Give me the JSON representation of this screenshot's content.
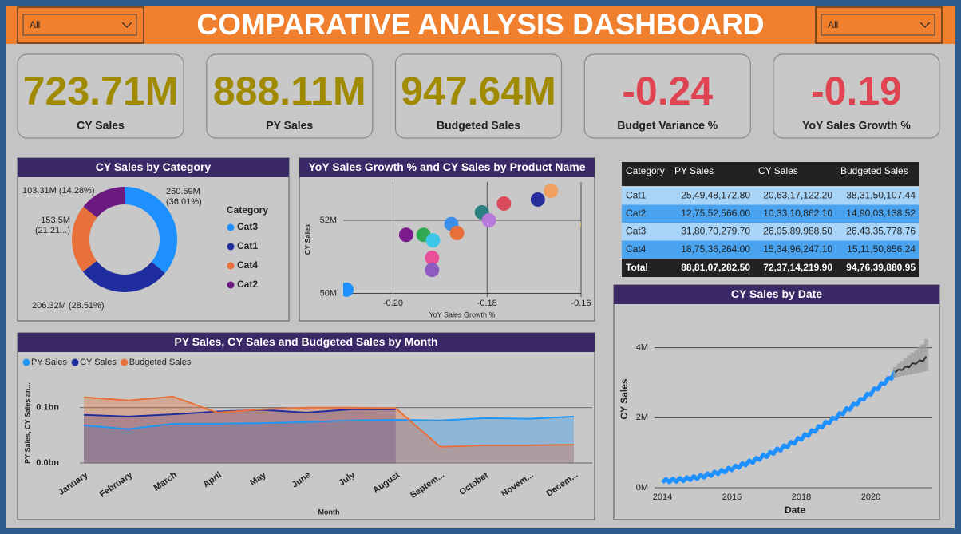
{
  "header": {
    "title": "COMPARATIVE ANALYSIS DASHBOARD",
    "slicers": [
      "All",
      "All"
    ]
  },
  "cards": [
    {
      "value": "723.71M",
      "label": "CY Sales",
      "color": "#a08a00"
    },
    {
      "value": "888.11M",
      "label": "PY Sales",
      "color": "#a08a00"
    },
    {
      "value": "947.64M",
      "label": "Budgeted Sales",
      "color": "#a08a00"
    },
    {
      "value": "-0.24",
      "label": "Budget Variance %",
      "color": "#e04452"
    },
    {
      "value": "-0.19",
      "label": "YoY Sales Growth %",
      "color": "#e04452"
    }
  ],
  "table": {
    "columns": [
      "Category",
      "PY Sales",
      "CY Sales",
      "Budgeted Sales"
    ],
    "rows": [
      [
        "Cat1",
        "25,49,48,172.80",
        "20,63,17,122.20",
        "38,31,50,107.44"
      ],
      [
        "Cat2",
        "12,75,52,566.00",
        "10,33,10,862.10",
        "14,90,03,138.52"
      ],
      [
        "Cat3",
        "31,80,70,279.70",
        "26,05,89,988.50",
        "26,43,35,778.76"
      ],
      [
        "Cat4",
        "18,75,36,264.00",
        "15,34,96,247.10",
        "15,11,50,856.24"
      ]
    ],
    "total": [
      "Total",
      "88,81,07,282.50",
      "72,37,14,219.90",
      "94,76,39,880.95"
    ]
  },
  "chart_data": [
    {
      "type": "pie",
      "title": "CY Sales by Category",
      "legend_title": "Category",
      "categories": [
        "Cat3",
        "Cat1",
        "Cat4",
        "Cat2"
      ],
      "values": [
        260.59,
        206.32,
        153.5,
        103.31
      ],
      "value_labels": [
        "260.59M (36.01%)",
        "206.32M (28.51%)",
        "153.5M (21.21...)",
        "103.31M (14.28%)"
      ],
      "colors": [
        "#1e90ff",
        "#1f2d9e",
        "#e8703a",
        "#6b1a7f"
      ]
    },
    {
      "type": "scatter",
      "title": "YoY Sales Growth % and CY Sales by Product Name",
      "x_label": "YoY Sales Growth %",
      "y_label": "CY Sales",
      "x": [
        -0.2099,
        -0.1972,
        -0.1935,
        -0.1915,
        -0.1876,
        -0.1864,
        -0.1917,
        -0.1917,
        -0.1811,
        -0.1796,
        -0.1764,
        -0.1692,
        -0.1664,
        -0.1586
      ],
      "values": [
        50.1,
        51.6,
        51.6,
        51.45,
        51.9,
        51.65,
        50.97,
        50.64,
        52.22,
        52.0,
        52.46,
        52.57,
        52.81,
        51.88
      ],
      "colors": [
        "#1e90ff",
        "#7a1a8c",
        "#2fa84f",
        "#3ec8e8",
        "#3b8fe8",
        "#e8703a",
        "#e8509a",
        "#8e5cc0",
        "#2a7f80",
        "#b67ad8",
        "#d94a5a",
        "#2a2f9e",
        "#f0a060",
        "#d4b020"
      ],
      "xlim": [
        -0.2106,
        -0.16
      ],
      "ylim": [
        49.9,
        53.05
      ],
      "xticks": [
        {
          "value": -0.2,
          "label": "-0.20"
        },
        {
          "value": -0.18,
          "label": "-0.18"
        },
        {
          "value": -0.16,
          "label": "-0.16"
        }
      ],
      "yticks": [
        {
          "value": 50,
          "label": "50M"
        },
        {
          "value": 52,
          "label": "52M"
        }
      ],
      "grid": true
    },
    {
      "type": "area",
      "title": "PY Sales, CY Sales and Budgeted Sales by Month",
      "x_label": "Month",
      "y_label": "PY Sales, CY Sales an...",
      "categories": [
        "January",
        "February",
        "March",
        "April",
        "May",
        "June",
        "July",
        "August",
        "Septem...",
        "October",
        "Novem...",
        "Decem..."
      ],
      "series": [
        {
          "name": "PY Sales",
          "color": "#2196f3",
          "values": [
            0.068,
            0.061,
            0.071,
            0.071,
            0.072,
            0.074,
            0.077,
            0.078,
            0.077,
            0.081,
            0.08,
            0.084
          ]
        },
        {
          "name": "CY Sales",
          "color": "#1f2d9e",
          "values": [
            0.087,
            0.084,
            0.088,
            0.093,
            0.096,
            0.091,
            0.097,
            0.097,
            null,
            null,
            null,
            null
          ]
        },
        {
          "name": "Budgeted Sales",
          "color": "#e8703a",
          "values": [
            0.119,
            0.113,
            0.12,
            0.091,
            0.097,
            0.1,
            0.1,
            0.099,
            0.029,
            0.032,
            0.032,
            0.033
          ]
        }
      ],
      "ylim": [
        0,
        0.13
      ],
      "yticks": [
        {
          "value": 0,
          "label": "0.0bn"
        },
        {
          "value": 0.1,
          "label": "0.1bn"
        }
      ],
      "grid": true
    },
    {
      "type": "line",
      "title": "CY Sales by Date",
      "x_label": "Date",
      "y_label": "CY Sales",
      "series": [
        {
          "color": "#1e90ff",
          "x": [
            2014.0,
            2014.1,
            2014.2,
            2014.3,
            2014.4,
            2014.5,
            2014.6,
            2014.7,
            2014.8,
            2014.9,
            2015.0,
            2015.1,
            2015.2,
            2015.3,
            2015.4,
            2015.5,
            2015.6,
            2015.7,
            2015.8,
            2015.9,
            2016.0,
            2016.1,
            2016.2,
            2016.3,
            2016.4,
            2016.5,
            2016.6,
            2016.7,
            2016.8,
            2016.9,
            2017.0,
            2017.1,
            2017.2,
            2017.3,
            2017.4,
            2017.5,
            2017.6,
            2017.7,
            2017.8,
            2017.9,
            2018.0,
            2018.1,
            2018.2,
            2018.3,
            2018.4,
            2018.5,
            2018.6,
            2018.7,
            2018.8,
            2018.9,
            2019.0,
            2019.1,
            2019.2,
            2019.3,
            2019.4,
            2019.5,
            2019.6,
            2019.7,
            2019.8,
            2019.9,
            2020.0,
            2020.1,
            2020.2,
            2020.3,
            2020.4,
            2020.5,
            2020.6,
            2020.7
          ],
          "values": [
            0.15,
            0.25,
            0.16,
            0.26,
            0.17,
            0.28,
            0.19,
            0.3,
            0.22,
            0.33,
            0.25,
            0.37,
            0.29,
            0.41,
            0.34,
            0.46,
            0.39,
            0.51,
            0.44,
            0.57,
            0.5,
            0.63,
            0.57,
            0.7,
            0.64,
            0.78,
            0.71,
            0.85,
            0.8,
            0.94,
            0.88,
            1.02,
            0.97,
            1.12,
            1.06,
            1.21,
            1.16,
            1.31,
            1.26,
            1.42,
            1.37,
            1.53,
            1.48,
            1.64,
            1.6,
            1.76,
            1.72,
            1.88,
            1.84,
            2.0,
            1.97,
            2.13,
            2.1,
            2.27,
            2.23,
            2.4,
            2.37,
            2.54,
            2.52,
            2.69,
            2.66,
            2.84,
            2.81,
            2.99,
            2.97,
            3.14,
            3.12,
            3.35
          ]
        },
        {
          "color": "#333333",
          "band_color": "#9a9a9a",
          "x": [
            2020.7,
            2020.8,
            2020.9,
            2021.0,
            2021.1,
            2021.2,
            2021.3,
            2021.4,
            2021.5,
            2021.6
          ],
          "values": [
            3.3,
            3.38,
            3.36,
            3.46,
            3.44,
            3.56,
            3.54,
            3.64,
            3.62,
            3.75
          ],
          "lower": [
            3.15,
            3.17,
            3.19,
            3.21,
            3.23,
            3.25,
            3.27,
            3.29,
            3.31,
            3.33
          ],
          "upper": [
            3.45,
            3.55,
            3.62,
            3.7,
            3.78,
            3.86,
            3.94,
            4.02,
            4.1,
            4.25
          ]
        }
      ],
      "xlim": [
        2013.77,
        2021.77
      ],
      "ylim": [
        0,
        4.7
      ],
      "xticks": [
        2014,
        2016,
        2018,
        2020
      ],
      "yticks": [
        {
          "value": 0,
          "label": "0M"
        },
        {
          "value": 2,
          "label": "2M"
        },
        {
          "value": 4,
          "label": "4M"
        }
      ],
      "grid": true
    }
  ]
}
